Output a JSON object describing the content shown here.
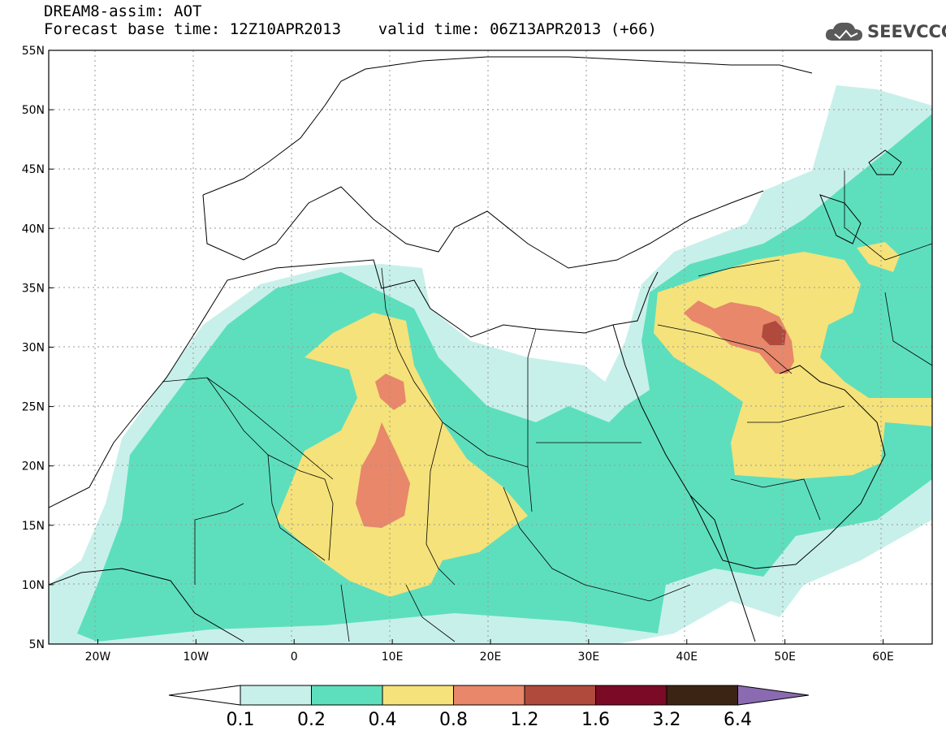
{
  "header": {
    "line1": "DREAM8-assim: AOT",
    "line2": "Forecast base time: 12Z10APR2013    valid time: 06Z13APR2013 (+66)"
  },
  "logo": {
    "text": "SEEVCCC",
    "icon": "cloud-icon",
    "color": "#4a4a4a"
  },
  "map": {
    "variable": "AOT",
    "lon_range": [
      -25,
      65
    ],
    "lat_range": [
      5,
      55
    ],
    "lat_ticks": [
      "55N",
      "50N",
      "45N",
      "40N",
      "35N",
      "30N",
      "25N",
      "20N",
      "15N",
      "10N",
      "5N"
    ],
    "lon_ticks": [
      "20W",
      "10W",
      "0",
      "10E",
      "20E",
      "30E",
      "40E",
      "50E",
      "60E"
    ],
    "grid": "dotted"
  },
  "colorbar": {
    "labels": [
      "0.1",
      "0.2",
      "0.4",
      "0.8",
      "1.2",
      "1.6",
      "3.2",
      "6.4"
    ],
    "colors": [
      "#ffffff",
      "#c8f0ea",
      "#5ddfbd",
      "#f5e27a",
      "#e8876a",
      "#b04a3c",
      "#7a0a25",
      "#3c2414",
      "#8a6ab0"
    ]
  }
}
